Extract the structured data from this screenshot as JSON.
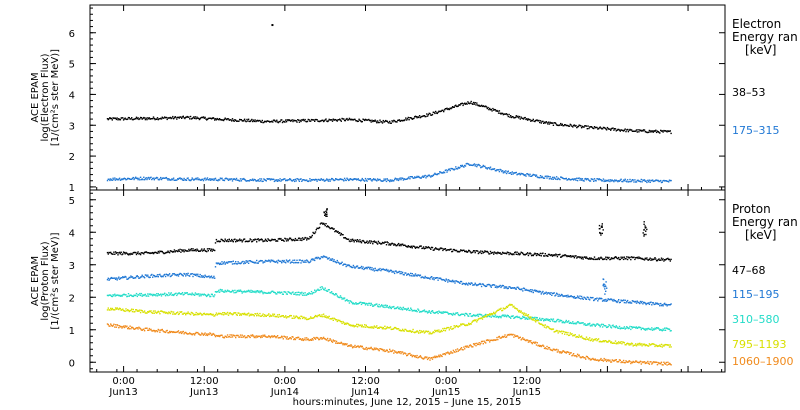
{
  "colors": {
    "black": "#000000",
    "blue": "#1f77d4",
    "cyan": "#22dcc8",
    "yellow": "#d8e000",
    "orange": "#f08a1c"
  },
  "chart_data": [
    {
      "type": "scatter",
      "panel": "electron",
      "ylabel_lines": [
        "ACE EPAM",
        "log(Electron Flux)",
        "[1/(cm²s ster MeV)]"
      ],
      "ylim": [
        0.9,
        6.9
      ],
      "yticks": [
        1,
        2,
        3,
        4,
        5,
        6
      ],
      "yticklabels": [
        "1",
        "2",
        "3",
        "4",
        "5",
        "6"
      ],
      "legend_title_lines": [
        "Electron",
        "Energy ran",
        "[keV]"
      ],
      "series": [
        {
          "name": "38–53",
          "color": "#000000",
          "x_hours": [
            0,
            6,
            12,
            18,
            24,
            30,
            36,
            42,
            48,
            54,
            60,
            66,
            72,
            78,
            84
          ],
          "y": [
            3.2,
            3.22,
            3.25,
            3.18,
            3.12,
            3.15,
            3.18,
            3.1,
            3.35,
            3.75,
            3.3,
            3.05,
            2.92,
            2.82,
            2.78
          ]
        },
        {
          "name": "175–315",
          "color": "#1f77d4",
          "x_hours": [
            0,
            6,
            12,
            18,
            24,
            30,
            36,
            42,
            48,
            54,
            60,
            66,
            72,
            78,
            84
          ],
          "y": [
            1.25,
            1.28,
            1.25,
            1.24,
            1.22,
            1.22,
            1.24,
            1.22,
            1.35,
            1.75,
            1.45,
            1.3,
            1.22,
            1.2,
            1.18
          ]
        }
      ],
      "outliers": [
        {
          "x_hours": 24.5,
          "y": 6.25,
          "color": "#000000"
        }
      ]
    },
    {
      "type": "scatter",
      "panel": "proton",
      "ylabel_lines": [
        "ACE EPAM",
        "log(Proton Flux)",
        "[1/(cm²s ster MeV)]"
      ],
      "ylim": [
        -0.3,
        5.3
      ],
      "yticks": [
        0,
        1,
        2,
        3,
        4,
        5
      ],
      "yticklabels": [
        "0",
        "1",
        "2",
        "3",
        "4",
        "5"
      ],
      "legend_title_lines": [
        "Proton",
        "Energy ran",
        "[keV]"
      ],
      "series": [
        {
          "name": "47–68",
          "color": "#000000",
          "x_hours": [
            0,
            6,
            12,
            16,
            16.1,
            24,
            30,
            32,
            36,
            42,
            48,
            54,
            60,
            66,
            72,
            78,
            84
          ],
          "y": [
            3.35,
            3.35,
            3.45,
            3.45,
            3.75,
            3.75,
            3.8,
            4.3,
            3.75,
            3.65,
            3.5,
            3.4,
            3.35,
            3.3,
            3.2,
            3.2,
            3.15
          ]
        },
        {
          "name": "115–195",
          "color": "#1f77d4",
          "x_hours": [
            0,
            6,
            12,
            16,
            16.1,
            24,
            30,
            32,
            36,
            42,
            48,
            54,
            60,
            66,
            72,
            78,
            84
          ],
          "y": [
            2.55,
            2.65,
            2.7,
            2.6,
            3.05,
            3.1,
            3.1,
            3.25,
            2.95,
            2.8,
            2.6,
            2.4,
            2.3,
            2.1,
            1.95,
            1.85,
            1.75
          ]
        },
        {
          "name": "310–580",
          "color": "#22dcc8",
          "x_hours": [
            0,
            6,
            12,
            16,
            16.1,
            24,
            30,
            32,
            36,
            42,
            48,
            54,
            60,
            66,
            72,
            78,
            84
          ],
          "y": [
            2.05,
            2.08,
            2.1,
            2.05,
            2.2,
            2.15,
            2.1,
            2.3,
            1.85,
            1.7,
            1.55,
            1.45,
            1.4,
            1.3,
            1.15,
            1.05,
            1.0
          ]
        },
        {
          "name": "795–1193",
          "color": "#d8e000",
          "x_hours": [
            0,
            6,
            12,
            16,
            16.1,
            24,
            30,
            32,
            36,
            42,
            48,
            54,
            60,
            66,
            72,
            78,
            84
          ],
          "y": [
            1.65,
            1.55,
            1.5,
            1.45,
            1.5,
            1.45,
            1.35,
            1.45,
            1.15,
            1.05,
            0.9,
            1.2,
            1.75,
            1.0,
            0.7,
            0.55,
            0.5
          ]
        },
        {
          "name": "1060–1900",
          "color": "#f08a1c",
          "x_hours": [
            0,
            6,
            12,
            16,
            16.1,
            24,
            30,
            32,
            36,
            42,
            48,
            54,
            60,
            66,
            72,
            78,
            84
          ],
          "y": [
            1.15,
            1.0,
            0.9,
            0.85,
            0.8,
            0.8,
            0.7,
            0.75,
            0.5,
            0.35,
            0.1,
            0.5,
            0.85,
            0.4,
            0.1,
            0.0,
            -0.05
          ]
        }
      ],
      "spikes": [
        {
          "x_hours": 32.5,
          "y": [
            4.5,
            4.75
          ],
          "color": "#000000"
        },
        {
          "x_hours": 73.5,
          "y": [
            3.8,
            4.3
          ],
          "color": "#000000"
        },
        {
          "x_hours": 80,
          "y": [
            3.9,
            4.35
          ],
          "color": "#000000"
        },
        {
          "x_hours": 74,
          "y": [
            2.1,
            2.6
          ],
          "color": "#1f77d4"
        }
      ]
    }
  ],
  "x_axis": {
    "range_hours": [
      -2.5,
      92
    ],
    "major_ticks_hours": [
      2.5,
      14.5,
      26.5,
      38.5,
      50.5,
      62.5,
      74.5,
      86.5
    ],
    "minor_step_hours": 3,
    "labels": [
      {
        "x_hours": 2.5,
        "line1": "0:00",
        "line2": "Jun13"
      },
      {
        "x_hours": 14.5,
        "line1": "12:00",
        "line2": "Jun13"
      },
      {
        "x_hours": 26.5,
        "line1": "0:00",
        "line2": "Jun14"
      },
      {
        "x_hours": 38.5,
        "line1": "12:00",
        "line2": "Jun14"
      },
      {
        "x_hours": 50.5,
        "line1": "0:00",
        "line2": "Jun15"
      },
      {
        "x_hours": 62.5,
        "line1": "12:00",
        "line2": "Jun15"
      }
    ],
    "title": "hours:minutes, June 12, 2015 – June 15, 2015"
  }
}
